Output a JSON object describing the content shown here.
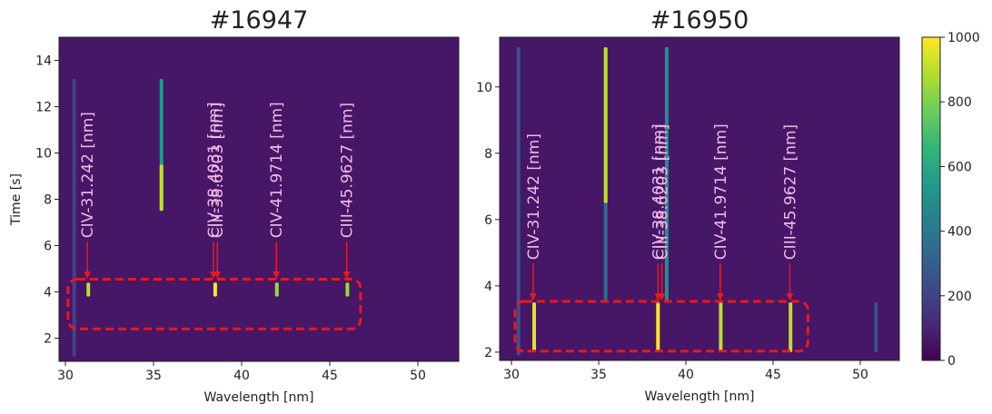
{
  "chart_data": [
    {
      "type": "heatmap",
      "title": "#16947",
      "xlabel": "Wavelength [nm]",
      "ylabel": "Time [s]",
      "xlim": [
        29.64,
        52.32
      ],
      "ylim": [
        1.0,
        15.0
      ],
      "xticks": [
        30,
        35,
        40,
        45,
        50
      ],
      "yticks": [
        2,
        4,
        6,
        8,
        10,
        12,
        14
      ],
      "background": 60,
      "streaks": [
        {
          "x": 30.5,
          "y": [
            1.2,
            13.2
          ],
          "value": 200
        },
        {
          "x": 35.45,
          "y": [
            7.5,
            13.2
          ],
          "value": 550
        },
        {
          "x": 35.45,
          "y": [
            7.5,
            9.5
          ],
          "value": 900
        },
        {
          "x": 31.3,
          "y": [
            3.8,
            4.4
          ],
          "value": 900
        },
        {
          "x": 38.5,
          "y": [
            3.8,
            4.4
          ],
          "value": 1000
        },
        {
          "x": 42.0,
          "y": [
            3.8,
            4.4
          ],
          "value": 850
        },
        {
          "x": 46.0,
          "y": [
            3.8,
            4.4
          ],
          "value": 850
        }
      ],
      "box": {
        "x": [
          30.15,
          46.75
        ],
        "y": [
          2.4,
          4.55
        ]
      },
      "annotations": [
        {
          "text": "CIV-31.242 [nm]",
          "x": 31.242,
          "y": 4.6
        },
        {
          "text": "CIV-38.4031 [nm]",
          "x": 38.4031,
          "y": 4.6
        },
        {
          "text": "CIII-38.6203 [nm]",
          "x": 38.6203,
          "y": 4.6
        },
        {
          "text": "CIV-41.9714 [nm]",
          "x": 41.9714,
          "y": 4.6
        },
        {
          "text": "CIII-45.9627 [nm]",
          "x": 45.9627,
          "y": 4.6
        }
      ]
    },
    {
      "type": "heatmap",
      "title": "#16950",
      "xlabel": "Wavelength [nm]",
      "xlim": [
        29.32,
        52.24
      ],
      "ylim": [
        1.75,
        11.5
      ],
      "xticks": [
        30,
        35,
        40,
        45,
        50
      ],
      "yticks": [
        2,
        4,
        6,
        8,
        10
      ],
      "background": 60,
      "streaks": [
        {
          "x": 30.4,
          "y": [
            1.9,
            11.2
          ],
          "value": 250
        },
        {
          "x": 35.4,
          "y": [
            3.5,
            11.2
          ],
          "value": 350
        },
        {
          "x": 35.4,
          "y": [
            6.5,
            11.2
          ],
          "value": 900
        },
        {
          "x": 38.9,
          "y": [
            3.5,
            11.2
          ],
          "value": 500
        },
        {
          "x": 31.3,
          "y": [
            2.0,
            3.5
          ],
          "value": 950
        },
        {
          "x": 38.4,
          "y": [
            2.0,
            3.5
          ],
          "value": 1000
        },
        {
          "x": 42.0,
          "y": [
            2.0,
            3.5
          ],
          "value": 900
        },
        {
          "x": 46.0,
          "y": [
            2.0,
            3.5
          ],
          "value": 900
        },
        {
          "x": 50.9,
          "y": [
            2.0,
            3.5
          ],
          "value": 250
        }
      ],
      "box": {
        "x": [
          30.2,
          47.0
        ],
        "y": [
          2.03,
          3.53
        ]
      },
      "annotations": [
        {
          "text": "CIV-31.242 [nm]",
          "x": 31.242,
          "y": 3.58
        },
        {
          "text": "CIV-38.4031 [nm]",
          "x": 38.4031,
          "y": 3.58
        },
        {
          "text": "CIII-38.6203 [nm]",
          "x": 38.6203,
          "y": 3.58
        },
        {
          "text": "CIV-41.9714 [nm]",
          "x": 41.9714,
          "y": 3.58
        },
        {
          "text": "CIII-45.9627 [nm]",
          "x": 45.9627,
          "y": 3.58
        }
      ]
    },
    {
      "type": "colorbar",
      "ylim": [
        0,
        1000
      ],
      "yticks": [
        0,
        200,
        400,
        600,
        800,
        1000
      ],
      "colors": [
        "#440154",
        "#482878",
        "#3e4989",
        "#31688e",
        "#26828e",
        "#1f9e89",
        "#35b779",
        "#6ece58",
        "#b5de2b",
        "#fde725"
      ]
    }
  ]
}
